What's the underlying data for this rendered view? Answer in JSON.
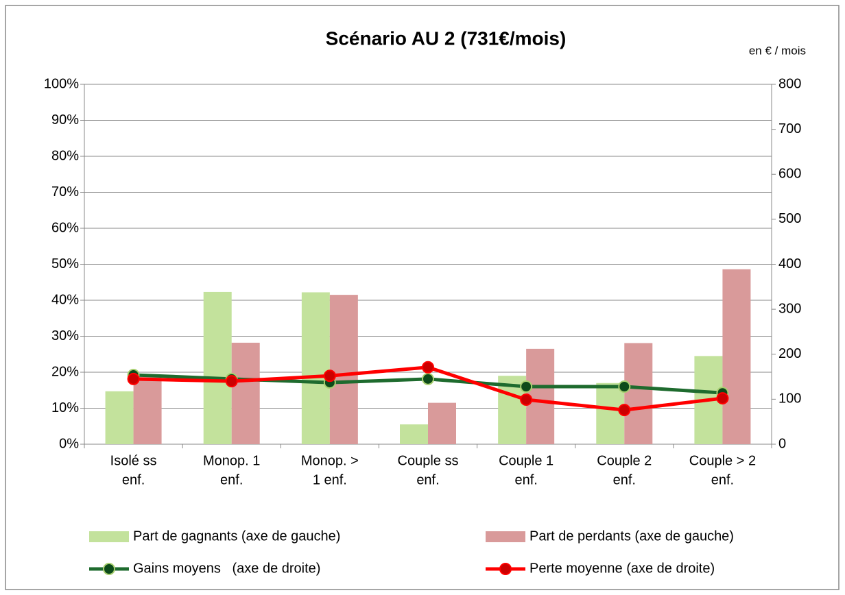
{
  "chart_data": {
    "type": "bar",
    "title": "Scénario AU 2 (731€/mois)",
    "annotation": "en € / mois",
    "categories": [
      [
        "Isolé ss",
        "enf."
      ],
      [
        "Monop. 1",
        "enf."
      ],
      [
        "Monop. >",
        "1 enf."
      ],
      [
        "Couple  ss",
        "enf."
      ],
      [
        "Couple 1",
        "enf."
      ],
      [
        "Couple 2",
        "enf."
      ],
      [
        "Couple > 2",
        "enf."
      ]
    ],
    "series": [
      {
        "name": "Part de gagnants (axe de gauche)",
        "type": "bar",
        "color": "#c3e29c",
        "values": [
          14.7,
          42.3,
          42.2,
          5.5,
          19,
          17,
          24.5
        ]
      },
      {
        "name": "Part de perdants (axe de gauche)",
        "type": "bar",
        "color": "#d99a9a",
        "values": [
          19,
          28.2,
          41.5,
          11.5,
          26.5,
          28.1,
          48.6
        ]
      },
      {
        "name": "Gains moyens   (axe de droite)",
        "type": "line",
        "axis": "y2",
        "color": "#1e6b2e",
        "marker_color": "#0d4a1a",
        "marker_edge": "#a8cf70",
        "values": [
          154,
          145,
          137,
          145,
          128,
          128,
          114
        ]
      },
      {
        "name": "Perte moyenne (axe de droite)",
        "type": "line",
        "axis": "y2",
        "color": "#ff0000",
        "marker_color": "#cc0000",
        "marker_edge": "#ff0000",
        "values": [
          145,
          140,
          152,
          171,
          99,
          76,
          102
        ]
      }
    ],
    "ylim": [
      0,
      100
    ],
    "yticks": [
      {
        "value": 0,
        "label": "0%"
      },
      {
        "value": 10,
        "label": "10%"
      },
      {
        "value": 20,
        "label": "20%"
      },
      {
        "value": 30,
        "label": "30%"
      },
      {
        "value": 40,
        "label": "40%"
      },
      {
        "value": 50,
        "label": "50%"
      },
      {
        "value": 60,
        "label": "60%"
      },
      {
        "value": 70,
        "label": "70%"
      },
      {
        "value": 80,
        "label": "80%"
      },
      {
        "value": 90,
        "label": "90%"
      },
      {
        "value": 100,
        "label": "100%"
      }
    ],
    "y2lim": [
      0,
      800
    ],
    "y2ticks": [
      0,
      100,
      200,
      300,
      400,
      500,
      600,
      700,
      800
    ],
    "grid": true
  }
}
